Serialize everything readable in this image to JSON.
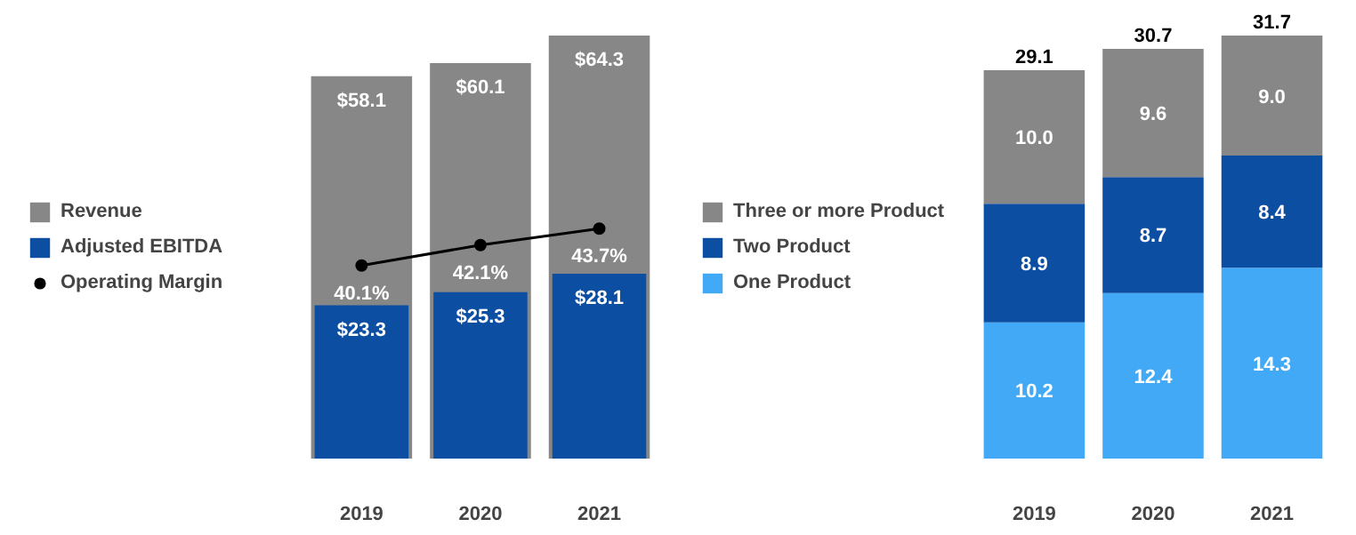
{
  "chart_data": [
    {
      "type": "bar",
      "categories": [
        "2019",
        "2020",
        "2021"
      ],
      "tick_labels": "x",
      "grid": false,
      "legend": "left",
      "series": [
        {
          "name": "Revenue",
          "color": "#878787",
          "values": [
            58.1,
            60.1,
            64.3
          ],
          "value_labels": [
            "$58.1",
            "$60.1",
            "$64.3"
          ]
        },
        {
          "name": "Adjusted EBITDA",
          "color": "#0b4ea2",
          "values": [
            23.3,
            25.3,
            28.1
          ],
          "value_labels": [
            "$23.3",
            "$25.3",
            "$28.1"
          ]
        },
        {
          "name": "Operating Margin",
          "type": "line",
          "axis": "y2",
          "color": "#000000",
          "marker": "circle",
          "values": [
            40.1,
            42.1,
            43.7
          ],
          "value_labels": [
            "40.1%",
            "42.1%",
            "43.7%"
          ]
        }
      ]
    },
    {
      "type": "bar",
      "stacked": true,
      "categories": [
        "2019",
        "2020",
        "2021"
      ],
      "tick_labels": "x",
      "grid": false,
      "legend": "left",
      "totals": [
        "29.1",
        "30.7",
        "31.7"
      ],
      "series": [
        {
          "name": "One Product",
          "color": "#41a9f5",
          "values": [
            10.2,
            12.4,
            14.3
          ],
          "value_labels": [
            "10.2",
            "12.4",
            "14.3"
          ]
        },
        {
          "name": "Two Product",
          "color": "#0b4ea2",
          "values": [
            8.9,
            8.7,
            8.4
          ],
          "value_labels": [
            "8.9",
            "8.7",
            "8.4"
          ]
        },
        {
          "name": "Three or more Product",
          "color": "#878787",
          "values": [
            10.0,
            9.6,
            9.0
          ],
          "value_labels": [
            "10.0",
            "9.6",
            "9.0"
          ]
        }
      ]
    }
  ]
}
